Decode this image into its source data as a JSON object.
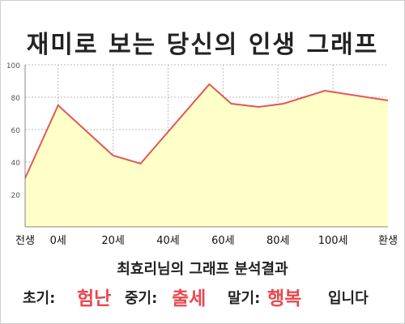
{
  "title": "재미로 보는 당신의 인생 그래프",
  "chart_data": {
    "type": "area",
    "x_min": -12,
    "x_max": 120,
    "ylim": [
      0,
      100
    ],
    "yticks": [
      20,
      40,
      60,
      80,
      100
    ],
    "xticks": [
      {
        "label": "전생",
        "x": -12
      },
      {
        "label": "0세",
        "x": 0
      },
      {
        "label": "20세",
        "x": 20
      },
      {
        "label": "40세",
        "x": 40
      },
      {
        "label": "60세",
        "x": 60
      },
      {
        "label": "80세",
        "x": 80
      },
      {
        "label": "100세",
        "x": 100
      },
      {
        "label": "환생",
        "x": 120
      }
    ],
    "points": [
      {
        "x": -12,
        "y": 30
      },
      {
        "x": 0,
        "y": 75
      },
      {
        "x": 20,
        "y": 44
      },
      {
        "x": 30,
        "y": 39
      },
      {
        "x": 55,
        "y": 88
      },
      {
        "x": 63,
        "y": 76
      },
      {
        "x": 73,
        "y": 74
      },
      {
        "x": 82,
        "y": 76
      },
      {
        "x": 97,
        "y": 84
      },
      {
        "x": 120,
        "y": 78
      }
    ],
    "grid": true,
    "colors": {
      "line": "#e0575a",
      "fill": "#ffffc8",
      "grid": "#bbbbbb",
      "axis": "#888888"
    }
  },
  "summary": "최효리님의 그래프 분석결과",
  "verdict": {
    "early_label": "초기:",
    "early_value": "험난",
    "mid_label": "중기:",
    "mid_value": "출세",
    "late_label": "말기:",
    "late_value": "행복",
    "ending": "입니다"
  }
}
